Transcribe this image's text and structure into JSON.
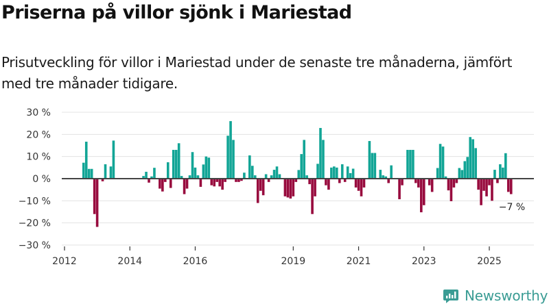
{
  "header": {
    "title": "Priserna på villor sjönk i Mariestad",
    "subtitle": "Prisutveckling för villor i Mariestad under de senaste tre månaderna, jämfört med tre månader tidigare."
  },
  "brand": {
    "name": "Newsworthy",
    "icon": "newsworthy-logo-icon",
    "color": "#3a9c94"
  },
  "colors": {
    "positive": "#12a596",
    "negative": "#980b3e",
    "zero_line": "#444444",
    "grid": "#e3e3e3"
  },
  "chart_data": {
    "type": "bar",
    "title": "Priserna på villor sjönk i Mariestad",
    "subtitle": "Prisutveckling för villor i Mariestad under de senaste tre månaderna, jämfört med tre månader tidigare.",
    "xlabel": "",
    "ylabel": "",
    "unit": "%",
    "ylim": [
      -30,
      30
    ],
    "xlim": [
      "2012-01",
      "2026-05"
    ],
    "grid": true,
    "legend": "none",
    "yticks": [
      30,
      20,
      10,
      0,
      -10,
      -20,
      -30
    ],
    "ytick_labels": [
      "30 %",
      "20 %",
      "10 %",
      "0 %",
      "−10 %",
      "−20 %",
      "−30 %"
    ],
    "xticks": [
      "2012",
      "2014",
      "2016",
      "2019",
      "2021",
      "2023",
      "2025"
    ],
    "annotation": {
      "label": "−7 %",
      "date": "2025-09"
    },
    "series": [
      {
        "name": "Prisutveckling",
        "points": [
          {
            "date": "2012-08",
            "value": 7.2
          },
          {
            "date": "2012-09",
            "value": 16.7
          },
          {
            "date": "2012-10",
            "value": 4.4
          },
          {
            "date": "2012-11",
            "value": 4.4
          },
          {
            "date": "2012-12",
            "value": -16
          },
          {
            "date": "2013-01",
            "value": -21.8
          },
          {
            "date": "2013-03",
            "value": -1.2
          },
          {
            "date": "2013-04",
            "value": 6.5
          },
          {
            "date": "2013-06",
            "value": 5.5
          },
          {
            "date": "2013-07",
            "value": 17.2
          },
          {
            "date": "2014-06",
            "value": 1.2
          },
          {
            "date": "2014-07",
            "value": 3.1
          },
          {
            "date": "2014-08",
            "value": -1.8
          },
          {
            "date": "2014-09",
            "value": 1
          },
          {
            "date": "2014-10",
            "value": 4.9
          },
          {
            "date": "2014-12",
            "value": -4.5
          },
          {
            "date": "2015-01",
            "value": -5.8
          },
          {
            "date": "2015-02",
            "value": -1.5
          },
          {
            "date": "2015-03",
            "value": 7.4
          },
          {
            "date": "2015-04",
            "value": -4.2
          },
          {
            "date": "2015-05",
            "value": 13
          },
          {
            "date": "2015-06",
            "value": 13
          },
          {
            "date": "2015-07",
            "value": 16
          },
          {
            "date": "2015-08",
            "value": 1.2
          },
          {
            "date": "2015-09",
            "value": -7
          },
          {
            "date": "2015-10",
            "value": -4.5
          },
          {
            "date": "2015-11",
            "value": 1.5
          },
          {
            "date": "2015-12",
            "value": 12
          },
          {
            "date": "2016-01",
            "value": 5
          },
          {
            "date": "2016-02",
            "value": 1.5
          },
          {
            "date": "2016-03",
            "value": -3.7
          },
          {
            "date": "2016-04",
            "value": 6.4
          },
          {
            "date": "2016-05",
            "value": 10
          },
          {
            "date": "2016-06",
            "value": 9.5
          },
          {
            "date": "2016-07",
            "value": -3
          },
          {
            "date": "2016-08",
            "value": -3.5
          },
          {
            "date": "2016-09",
            "value": -1.5
          },
          {
            "date": "2016-10",
            "value": -3.5
          },
          {
            "date": "2016-11",
            "value": -5
          },
          {
            "date": "2016-12",
            "value": -1.5
          },
          {
            "date": "2017-01",
            "value": 19.4
          },
          {
            "date": "2017-02",
            "value": 26
          },
          {
            "date": "2017-03",
            "value": 17.5
          },
          {
            "date": "2017-04",
            "value": -1.5
          },
          {
            "date": "2017-05",
            "value": -1.5
          },
          {
            "date": "2017-06",
            "value": -1
          },
          {
            "date": "2017-07",
            "value": 2.7
          },
          {
            "date": "2017-09",
            "value": 10.5
          },
          {
            "date": "2017-10",
            "value": 5.8
          },
          {
            "date": "2017-11",
            "value": 1.5
          },
          {
            "date": "2017-12",
            "value": -11
          },
          {
            "date": "2018-01",
            "value": -5.5
          },
          {
            "date": "2018-02",
            "value": -7.5
          },
          {
            "date": "2018-03",
            "value": 2
          },
          {
            "date": "2018-04",
            "value": -1.5
          },
          {
            "date": "2018-05",
            "value": 1.5
          },
          {
            "date": "2018-06",
            "value": 4
          },
          {
            "date": "2018-07",
            "value": 5.5
          },
          {
            "date": "2018-08",
            "value": 2
          },
          {
            "date": "2018-10",
            "value": -8
          },
          {
            "date": "2018-11",
            "value": -8.5
          },
          {
            "date": "2018-12",
            "value": -9
          },
          {
            "date": "2019-01",
            "value": -8
          },
          {
            "date": "2019-02",
            "value": -1.5
          },
          {
            "date": "2019-03",
            "value": 3.9
          },
          {
            "date": "2019-04",
            "value": 11.1
          },
          {
            "date": "2019-05",
            "value": 17.5
          },
          {
            "date": "2019-06",
            "value": 1.5
          },
          {
            "date": "2019-07",
            "value": -2.5
          },
          {
            "date": "2019-08",
            "value": -16
          },
          {
            "date": "2019-09",
            "value": -8
          },
          {
            "date": "2019-10",
            "value": 6.7
          },
          {
            "date": "2019-11",
            "value": 22.9
          },
          {
            "date": "2019-12",
            "value": 17.5
          },
          {
            "date": "2020-01",
            "value": -3
          },
          {
            "date": "2020-02",
            "value": -5
          },
          {
            "date": "2020-03",
            "value": 5
          },
          {
            "date": "2020-04",
            "value": 5.5
          },
          {
            "date": "2020-05",
            "value": 5
          },
          {
            "date": "2020-06",
            "value": -2
          },
          {
            "date": "2020-07",
            "value": 6.5
          },
          {
            "date": "2020-08",
            "value": -1.5
          },
          {
            "date": "2020-09",
            "value": 5.5
          },
          {
            "date": "2020-10",
            "value": 2.5
          },
          {
            "date": "2020-11",
            "value": 4.5
          },
          {
            "date": "2020-12",
            "value": -4
          },
          {
            "date": "2021-01",
            "value": -5.5
          },
          {
            "date": "2021-02",
            "value": -8
          },
          {
            "date": "2021-03",
            "value": -4
          },
          {
            "date": "2021-05",
            "value": 17
          },
          {
            "date": "2021-06",
            "value": 11.6
          },
          {
            "date": "2021-07",
            "value": 11.6
          },
          {
            "date": "2021-09",
            "value": 4
          },
          {
            "date": "2021-10",
            "value": 1.5
          },
          {
            "date": "2021-11",
            "value": 1
          },
          {
            "date": "2021-12",
            "value": -2
          },
          {
            "date": "2022-01",
            "value": 6
          },
          {
            "date": "2022-04",
            "value": -9.3
          },
          {
            "date": "2022-05",
            "value": -3
          },
          {
            "date": "2022-07",
            "value": 13
          },
          {
            "date": "2022-08",
            "value": 13
          },
          {
            "date": "2022-09",
            "value": 13
          },
          {
            "date": "2022-10",
            "value": -2
          },
          {
            "date": "2022-11",
            "value": -4
          },
          {
            "date": "2022-12",
            "value": -15.2
          },
          {
            "date": "2023-01",
            "value": -12
          },
          {
            "date": "2023-03",
            "value": -3
          },
          {
            "date": "2023-04",
            "value": -6
          },
          {
            "date": "2023-06",
            "value": 4.8
          },
          {
            "date": "2023-07",
            "value": 15.7
          },
          {
            "date": "2023-08",
            "value": 14.5
          },
          {
            "date": "2023-09",
            "value": 1
          },
          {
            "date": "2023-10",
            "value": -5.3
          },
          {
            "date": "2023-11",
            "value": -10.2
          },
          {
            "date": "2023-12",
            "value": -4
          },
          {
            "date": "2024-01",
            "value": -2
          },
          {
            "date": "2024-02",
            "value": 4.8
          },
          {
            "date": "2024-03",
            "value": 3.9
          },
          {
            "date": "2024-04",
            "value": 7.9
          },
          {
            "date": "2024-05",
            "value": 9.8
          },
          {
            "date": "2024-06",
            "value": 18.8
          },
          {
            "date": "2024-07",
            "value": 17.8
          },
          {
            "date": "2024-08",
            "value": 13.8
          },
          {
            "date": "2024-09",
            "value": -5
          },
          {
            "date": "2024-10",
            "value": -12
          },
          {
            "date": "2024-11",
            "value": -5.5
          },
          {
            "date": "2024-12",
            "value": -8
          },
          {
            "date": "2025-01",
            "value": -3
          },
          {
            "date": "2025-02",
            "value": -10
          },
          {
            "date": "2025-03",
            "value": 4
          },
          {
            "date": "2025-04",
            "value": -2
          },
          {
            "date": "2025-05",
            "value": 6.5
          },
          {
            "date": "2025-06",
            "value": 5
          },
          {
            "date": "2025-07",
            "value": 11.5
          },
          {
            "date": "2025-08",
            "value": -6
          },
          {
            "date": "2025-09",
            "value": -7
          }
        ]
      }
    ]
  }
}
